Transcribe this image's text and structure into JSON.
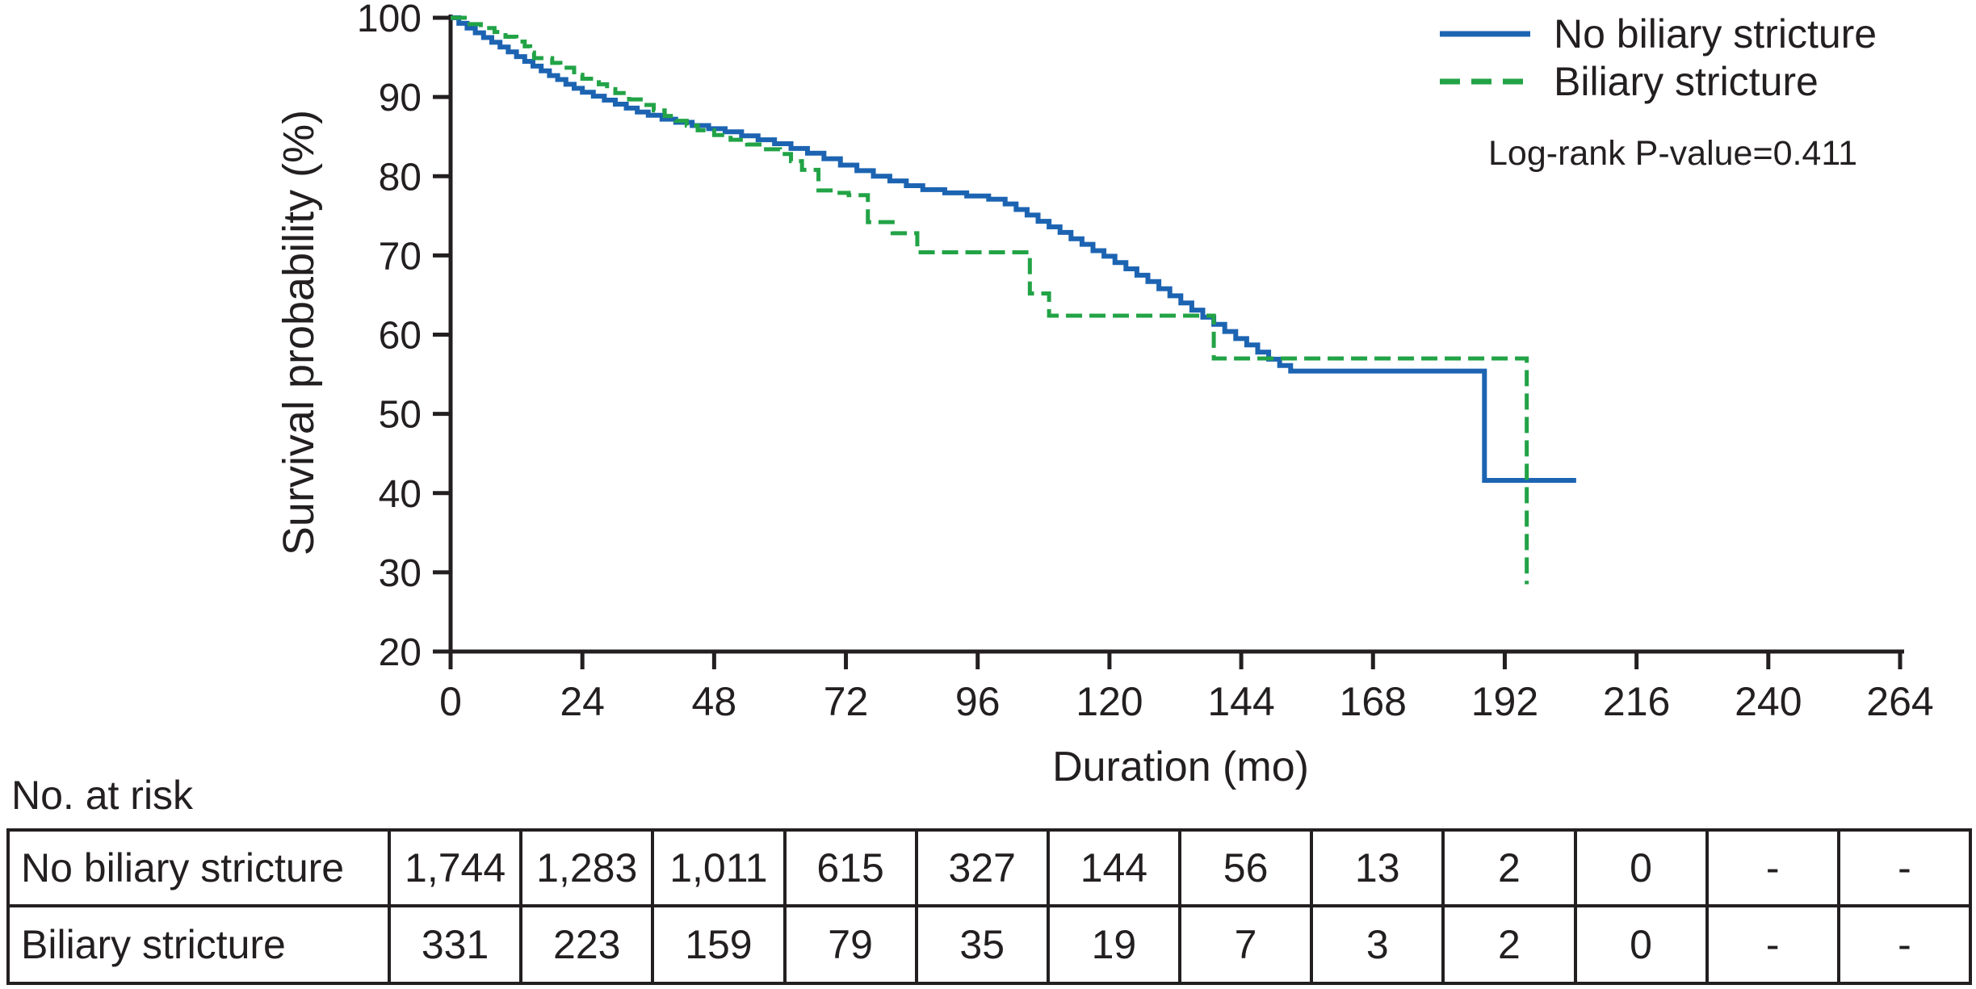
{
  "chart_data": {
    "type": "line",
    "subtype": "kaplan-meier-step",
    "title": "",
    "xlabel": "Duration (mo)",
    "ylabel": "Survival probability (%)",
    "xlim": [
      0,
      264
    ],
    "ylim": [
      20,
      100
    ],
    "x_ticks": [
      0,
      24,
      48,
      72,
      96,
      120,
      144,
      168,
      192,
      216,
      240,
      264
    ],
    "y_ticks": [
      20,
      30,
      40,
      50,
      60,
      70,
      80,
      90,
      100
    ],
    "grid": false,
    "legend_position": "top-right",
    "annotation": "Log-rank P-value=0.411",
    "series": [
      {
        "name": "No biliary stricture",
        "color": "#1c64b2",
        "style": "solid",
        "steps": [
          [
            0,
            100
          ],
          [
            1.5,
            99.3
          ],
          [
            3,
            98.7
          ],
          [
            4.5,
            98.1
          ],
          [
            6,
            97.5
          ],
          [
            7.5,
            96.9
          ],
          [
            9,
            96.3
          ],
          [
            10.5,
            95.7
          ],
          [
            12,
            95.1
          ],
          [
            13.5,
            94.5
          ],
          [
            15,
            93.9
          ],
          [
            16.5,
            93.3
          ],
          [
            18,
            92.7
          ],
          [
            19.5,
            92.2
          ],
          [
            21,
            91.6
          ],
          [
            22.5,
            91.1
          ],
          [
            24,
            90.6
          ],
          [
            26,
            90.1
          ],
          [
            28,
            89.6
          ],
          [
            30,
            89.1
          ],
          [
            32,
            88.6
          ],
          [
            34,
            88.1
          ],
          [
            36,
            87.7
          ],
          [
            38.5,
            87.2
          ],
          [
            41,
            86.8
          ],
          [
            44,
            86.4
          ],
          [
            47,
            86.0
          ],
          [
            50,
            85.6
          ],
          [
            53,
            85.1
          ],
          [
            56,
            84.6
          ],
          [
            59,
            84.1
          ],
          [
            62,
            83.5
          ],
          [
            65,
            82.9
          ],
          [
            68,
            82.2
          ],
          [
            71,
            81.4
          ],
          [
            74,
            80.7
          ],
          [
            77,
            80.0
          ],
          [
            80,
            79.4
          ],
          [
            83,
            78.8
          ],
          [
            86,
            78.3
          ],
          [
            90,
            77.9
          ],
          [
            94,
            77.5
          ],
          [
            98,
            77.1
          ],
          [
            101,
            76.5
          ],
          [
            103,
            75.8
          ],
          [
            105,
            75.1
          ],
          [
            107,
            74.3
          ],
          [
            109,
            73.6
          ],
          [
            111,
            72.9
          ],
          [
            113,
            72.1
          ],
          [
            115,
            71.4
          ],
          [
            117,
            70.6
          ],
          [
            119,
            69.9
          ],
          [
            121,
            69.1
          ],
          [
            123,
            68.3
          ],
          [
            125,
            67.5
          ],
          [
            127,
            66.7
          ],
          [
            129,
            65.8
          ],
          [
            131,
            64.9
          ],
          [
            133,
            64.0
          ],
          [
            135,
            63.1
          ],
          [
            137,
            62.2
          ],
          [
            139,
            61.3
          ],
          [
            141,
            60.4
          ],
          [
            143,
            59.5
          ],
          [
            145,
            58.7
          ],
          [
            147,
            57.8
          ],
          [
            149,
            56.9
          ],
          [
            151,
            56.1
          ],
          [
            153,
            55.4
          ],
          [
            188,
            55.4
          ],
          [
            188.3,
            41.6
          ],
          [
            205,
            41.6
          ]
        ]
      },
      {
        "name": "Biliary stricture",
        "color": "#22a346",
        "style": "dashed",
        "steps": [
          [
            0,
            100
          ],
          [
            3,
            99.2
          ],
          [
            5.5,
            98.7
          ],
          [
            8,
            98.2
          ],
          [
            10,
            97.6
          ],
          [
            12,
            97.0
          ],
          [
            13.5,
            96.4
          ],
          [
            14.5,
            95.6
          ],
          [
            15.2,
            94.9
          ],
          [
            18.5,
            94.3
          ],
          [
            20,
            93.7
          ],
          [
            22.5,
            92.8
          ],
          [
            24,
            92.3
          ],
          [
            27,
            91.6
          ],
          [
            28.5,
            91.0
          ],
          [
            30,
            90.5
          ],
          [
            32.5,
            89.7
          ],
          [
            35,
            89.0
          ],
          [
            37,
            88.3
          ],
          [
            39,
            87.6
          ],
          [
            41,
            87.0
          ],
          [
            43,
            86.4
          ],
          [
            45,
            85.8
          ],
          [
            48,
            85.2
          ],
          [
            51,
            84.6
          ],
          [
            54,
            84.0
          ],
          [
            57,
            83.4
          ],
          [
            60,
            82.8
          ],
          [
            62,
            81.9
          ],
          [
            64,
            80.8
          ],
          [
            67,
            78.2
          ],
          [
            70,
            77.9
          ],
          [
            72.5,
            77.6
          ],
          [
            76,
            74.2
          ],
          [
            80.5,
            72.8
          ],
          [
            85,
            70.4
          ],
          [
            105.5,
            65.2
          ],
          [
            109,
            62.4
          ],
          [
            139,
            57.0
          ],
          [
            196,
            28.5
          ]
        ]
      }
    ]
  },
  "risk_table": {
    "heading": "No. at risk",
    "rows": [
      {
        "label": "No biliary stricture",
        "values": [
          "1,744",
          "1,283",
          "1,011",
          "615",
          "327",
          "144",
          "56",
          "13",
          "2",
          "0",
          "-",
          "-"
        ]
      },
      {
        "label": "Biliary stricture",
        "values": [
          "331",
          "223",
          "159",
          "79",
          "35",
          "19",
          "7",
          "3",
          "2",
          "0",
          "-",
          "-"
        ]
      }
    ]
  },
  "colors": {
    "axis": "#231f20",
    "text": "#231f20",
    "background": "#ffffff",
    "no_biliary_stricture": "#1c64b2",
    "biliary_stricture": "#22a346"
  }
}
